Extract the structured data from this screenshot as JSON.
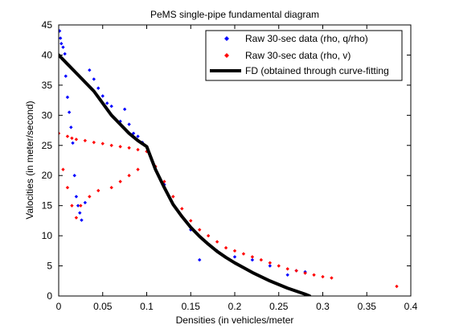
{
  "chart_data": {
    "type": "scatter",
    "title": "PeMS single-pipe fundamental diagram",
    "xlabel": "Densities (in vehicles/meter",
    "ylabel": "Valocities (in meter/second)",
    "xlim": [
      0,
      0.4
    ],
    "ylim": [
      0,
      45
    ],
    "x_ticks": [
      "0",
      "0.05",
      "0.1",
      "0.15",
      "0.2",
      "0.25",
      "0.3",
      "0.35",
      "0.4"
    ],
    "y_ticks": [
      "0",
      "5",
      "10",
      "15",
      "20",
      "25",
      "30",
      "35",
      "40",
      "45"
    ],
    "grid": false,
    "legend_position": "top-right",
    "colors": {
      "raw_q_over_rho": "#0000ff",
      "raw_v": "#ff0000",
      "fd": "#000000"
    },
    "series": [
      {
        "name": "Raw 30-sec data (rho, q/rho)",
        "marker": "diamond",
        "color": "#0000ff",
        "points": [
          [
            0.001,
            44.0
          ],
          [
            0.002,
            42.8
          ],
          [
            0.003,
            41.9
          ],
          [
            0.005,
            41.3
          ],
          [
            0.007,
            40.2
          ],
          [
            0.008,
            36.5
          ],
          [
            0.01,
            33.0
          ],
          [
            0.012,
            30.5
          ],
          [
            0.014,
            28.0
          ],
          [
            0.016,
            25.4
          ],
          [
            0.018,
            20.0
          ],
          [
            0.02,
            16.5
          ],
          [
            0.022,
            15.0
          ],
          [
            0.024,
            13.8
          ],
          [
            0.026,
            12.6
          ],
          [
            0.03,
            15.5
          ],
          [
            0.035,
            37.5
          ],
          [
            0.04,
            36.0
          ],
          [
            0.045,
            34.5
          ],
          [
            0.05,
            33.2
          ],
          [
            0.055,
            32.0
          ],
          [
            0.06,
            31.5
          ],
          [
            0.07,
            29.0
          ],
          [
            0.075,
            31.0
          ],
          [
            0.08,
            28.5
          ],
          [
            0.085,
            27.0
          ],
          [
            0.09,
            26.5
          ],
          [
            0.095,
            25.5
          ],
          [
            0.1,
            24.8
          ],
          [
            0.12,
            18.5
          ],
          [
            0.15,
            11.0
          ],
          [
            0.16,
            6.0
          ],
          [
            0.18,
            7.5
          ],
          [
            0.2,
            6.5
          ],
          [
            0.22,
            6.0
          ],
          [
            0.24,
            5.0
          ],
          [
            0.26,
            3.5
          ],
          [
            0.27,
            4.2
          ],
          [
            0.28,
            4.0
          ]
        ]
      },
      {
        "name": "Raw 30-sec data (rho, v)",
        "marker": "diamond",
        "color": "#ff0000",
        "points": [
          [
            0.0,
            27.0
          ],
          [
            0.01,
            26.5
          ],
          [
            0.015,
            26.2
          ],
          [
            0.02,
            26.0
          ],
          [
            0.03,
            25.8
          ],
          [
            0.04,
            25.5
          ],
          [
            0.05,
            25.3
          ],
          [
            0.06,
            25.0
          ],
          [
            0.07,
            24.8
          ],
          [
            0.08,
            24.6
          ],
          [
            0.09,
            24.3
          ],
          [
            0.1,
            24.0
          ],
          [
            0.11,
            21.5
          ],
          [
            0.12,
            19.0
          ],
          [
            0.13,
            16.5
          ],
          [
            0.14,
            14.5
          ],
          [
            0.15,
            12.5
          ],
          [
            0.16,
            11.0
          ],
          [
            0.17,
            10.0
          ],
          [
            0.18,
            9.0
          ],
          [
            0.19,
            8.0
          ],
          [
            0.2,
            7.5
          ],
          [
            0.21,
            7.0
          ],
          [
            0.22,
            6.5
          ],
          [
            0.23,
            6.0
          ],
          [
            0.24,
            5.5
          ],
          [
            0.25,
            5.0
          ],
          [
            0.26,
            4.5
          ],
          [
            0.27,
            4.2
          ],
          [
            0.28,
            3.8
          ],
          [
            0.29,
            3.5
          ],
          [
            0.3,
            3.2
          ],
          [
            0.31,
            3.0
          ],
          [
            0.384,
            1.6
          ],
          [
            0.005,
            21.0
          ],
          [
            0.01,
            18.0
          ],
          [
            0.015,
            15.0
          ],
          [
            0.02,
            13.0
          ],
          [
            0.025,
            15.0
          ],
          [
            0.035,
            16.5
          ],
          [
            0.045,
            17.5
          ],
          [
            0.06,
            18.0
          ],
          [
            0.07,
            19.0
          ],
          [
            0.08,
            20.0
          ],
          [
            0.09,
            21.0
          ]
        ]
      }
    ],
    "fit_series": {
      "name": "FD (obtained through curve-fitting",
      "color": "#000000",
      "points": [
        [
          0.0,
          40.0
        ],
        [
          0.01,
          38.5
        ],
        [
          0.02,
          37.0
        ],
        [
          0.03,
          35.5
        ],
        [
          0.04,
          34.0
        ],
        [
          0.05,
          32.0
        ],
        [
          0.06,
          30.0
        ],
        [
          0.07,
          28.5
        ],
        [
          0.08,
          27.0
        ],
        [
          0.09,
          25.8
        ],
        [
          0.1,
          24.8
        ],
        [
          0.11,
          21.0
        ],
        [
          0.12,
          18.0
        ],
        [
          0.13,
          15.2
        ],
        [
          0.14,
          13.2
        ],
        [
          0.15,
          11.4
        ],
        [
          0.16,
          9.9
        ],
        [
          0.17,
          8.6
        ],
        [
          0.18,
          7.4
        ],
        [
          0.19,
          6.4
        ],
        [
          0.2,
          5.5
        ],
        [
          0.21,
          4.7
        ],
        [
          0.22,
          3.9
        ],
        [
          0.23,
          3.2
        ],
        [
          0.24,
          2.5
        ],
        [
          0.25,
          1.9
        ],
        [
          0.26,
          1.3
        ],
        [
          0.27,
          0.8
        ],
        [
          0.28,
          0.3
        ],
        [
          0.285,
          0.0
        ]
      ]
    }
  }
}
